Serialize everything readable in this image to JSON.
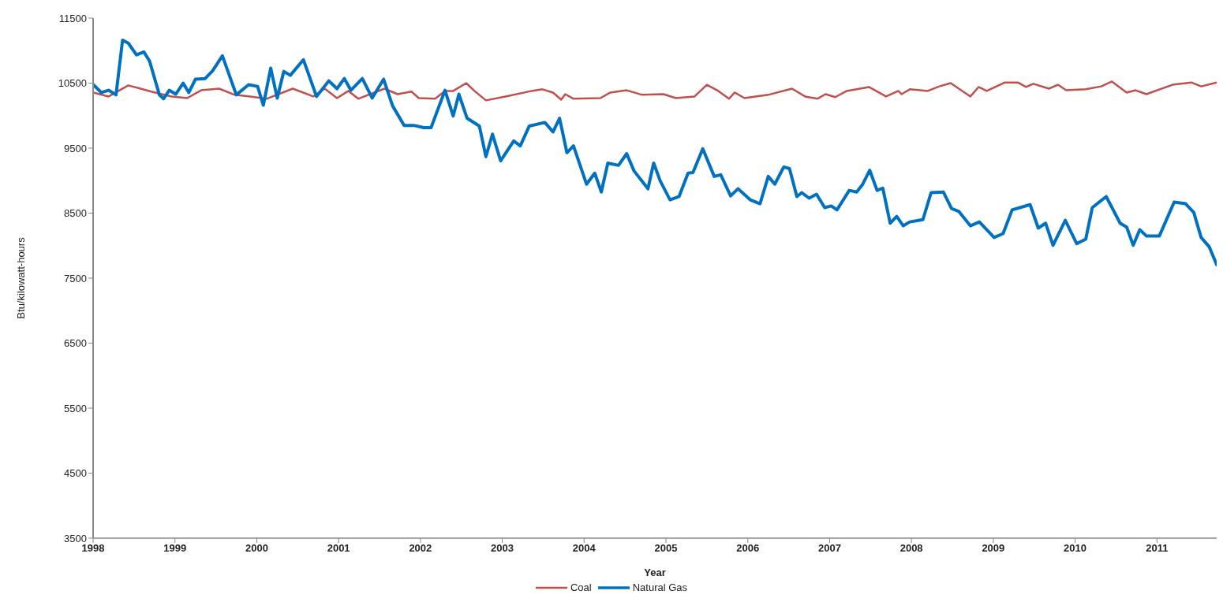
{
  "chart_data": {
    "type": "line",
    "xlabel": "Year",
    "ylabel": "Btu/kilowatt-hours",
    "xlim": [
      1998,
      2011.73
    ],
    "xticks": [
      1998,
      1999,
      2000,
      2001,
      2002,
      2003,
      2004,
      2005,
      2006,
      2007,
      2008,
      2009,
      2010,
      2011
    ],
    "ylim": [
      3500,
      11500
    ],
    "yticks": [
      3500,
      4500,
      5500,
      6500,
      7500,
      8500,
      9500,
      10500,
      11500
    ],
    "grid": false,
    "legend": "bottom",
    "marker": "none",
    "line_style": "solid",
    "series": [
      {
        "name": "Coal",
        "color": "#c0504d",
        "x": [
          1998.0,
          1998.19,
          1998.43,
          1998.58,
          1998.71,
          1998.84,
          1998.96,
          1999.15,
          1999.32,
          1999.54,
          1999.73,
          1999.92,
          2000.12,
          2000.44,
          2000.69,
          2000.83,
          2000.98,
          2001.12,
          2001.24,
          2001.56,
          2001.72,
          2001.89,
          2001.98,
          2002.18,
          2002.3,
          2002.4,
          2002.56,
          2002.66,
          2002.8,
          2003.04,
          2003.36,
          2003.49,
          2003.62,
          2003.72,
          2003.77,
          2003.87,
          2004.2,
          2004.32,
          2004.52,
          2004.71,
          2004.97,
          2005.12,
          2005.35,
          2005.5,
          2005.64,
          2005.77,
          2005.84,
          2005.96,
          2006.25,
          2006.54,
          2006.7,
          2006.85,
          2006.95,
          2007.07,
          2007.21,
          2007.48,
          2007.69,
          2007.84,
          2007.88,
          2007.98,
          2008.2,
          2008.34,
          2008.48,
          2008.72,
          2008.82,
          2008.92,
          2009.14,
          2009.3,
          2009.4,
          2009.49,
          2009.68,
          2009.79,
          2009.89,
          2010.13,
          2010.32,
          2010.45,
          2010.63,
          2010.74,
          2010.87,
          2011.19,
          2011.42,
          2011.54,
          2011.73
        ],
        "values": [
          10355,
          10295,
          10465,
          10415,
          10370,
          10330,
          10295,
          10270,
          10390,
          10415,
          10320,
          10295,
          10260,
          10415,
          10295,
          10415,
          10270,
          10380,
          10260,
          10415,
          10330,
          10370,
          10270,
          10260,
          10380,
          10380,
          10500,
          10380,
          10235,
          10295,
          10380,
          10405,
          10355,
          10245,
          10330,
          10260,
          10270,
          10355,
          10390,
          10320,
          10330,
          10270,
          10295,
          10475,
          10380,
          10260,
          10355,
          10270,
          10320,
          10415,
          10295,
          10260,
          10330,
          10285,
          10380,
          10440,
          10295,
          10380,
          10330,
          10405,
          10380,
          10450,
          10500,
          10295,
          10440,
          10380,
          10510,
          10510,
          10440,
          10490,
          10415,
          10475,
          10390,
          10405,
          10450,
          10525,
          10355,
          10390,
          10330,
          10475,
          10510,
          10450,
          10510
        ]
      },
      {
        "name": "Natural Gas",
        "color": "#0070c0",
        "x": [
          1998.0,
          1998.1,
          1998.19,
          1998.28,
          1998.36,
          1998.43,
          1998.53,
          1998.62,
          1998.69,
          1998.81,
          1998.86,
          1998.93,
          1999.01,
          1999.1,
          1999.17,
          1999.25,
          1999.37,
          1999.46,
          1999.58,
          1999.75,
          1999.9,
          2000.01,
          2000.08,
          2000.17,
          2000.25,
          2000.33,
          2000.41,
          2000.57,
          2000.73,
          2000.88,
          2000.98,
          2001.07,
          2001.15,
          2001.29,
          2001.41,
          2001.55,
          2001.66,
          2001.8,
          2001.92,
          2002.04,
          2002.13,
          2002.3,
          2002.4,
          2002.47,
          2002.57,
          2002.72,
          2002.8,
          2002.88,
          2002.98,
          2003.14,
          2003.22,
          2003.33,
          2003.52,
          2003.62,
          2003.7,
          2003.79,
          2003.87,
          2004.03,
          2004.13,
          2004.21,
          2004.29,
          2004.42,
          2004.52,
          2004.61,
          2004.78,
          2004.85,
          2004.93,
          2005.05,
          2005.16,
          2005.27,
          2005.33,
          2005.45,
          2005.59,
          2005.67,
          2005.79,
          2005.88,
          2006.03,
          2006.15,
          2006.25,
          2006.33,
          2006.44,
          2006.51,
          2006.6,
          2006.66,
          2006.75,
          2006.84,
          2006.94,
          2007.02,
          2007.09,
          2007.24,
          2007.33,
          2007.4,
          2007.49,
          2007.58,
          2007.65,
          2007.74,
          2007.82,
          2007.9,
          2007.98,
          2008.14,
          2008.24,
          2008.39,
          2008.49,
          2008.58,
          2008.72,
          2008.83,
          2009.01,
          2009.12,
          2009.23,
          2009.45,
          2009.55,
          2009.64,
          2009.73,
          2009.88,
          2010.02,
          2010.13,
          2010.21,
          2010.38,
          2010.55,
          2010.63,
          2010.71,
          2010.79,
          2010.87,
          2011.03,
          2011.21,
          2011.35,
          2011.45,
          2011.54,
          2011.64,
          2011.73
        ],
        "values": [
          10480,
          10355,
          10390,
          10320,
          11160,
          11115,
          10935,
          10980,
          10840,
          10320,
          10260,
          10390,
          10330,
          10500,
          10355,
          10560,
          10570,
          10690,
          10920,
          10320,
          10475,
          10450,
          10160,
          10730,
          10270,
          10680,
          10620,
          10860,
          10295,
          10535,
          10415,
          10570,
          10390,
          10570,
          10270,
          10560,
          10150,
          9850,
          9850,
          9815,
          9815,
          10390,
          9995,
          10330,
          9960,
          9840,
          9370,
          9715,
          9305,
          9610,
          9535,
          9840,
          9895,
          9750,
          9960,
          9430,
          9535,
          8945,
          9115,
          8825,
          9270,
          9235,
          9415,
          9150,
          8875,
          9270,
          8995,
          8705,
          8755,
          9115,
          9125,
          9490,
          9065,
          9090,
          8765,
          8875,
          8705,
          8645,
          9065,
          8945,
          9210,
          9185,
          8755,
          8815,
          8730,
          8790,
          8585,
          8610,
          8550,
          8850,
          8825,
          8935,
          9160,
          8850,
          8885,
          8345,
          8450,
          8305,
          8365,
          8400,
          8815,
          8825,
          8570,
          8525,
          8305,
          8365,
          8125,
          8185,
          8550,
          8630,
          8270,
          8345,
          8005,
          8390,
          8030,
          8100,
          8585,
          8755,
          8345,
          8285,
          8005,
          8245,
          8150,
          8150,
          8670,
          8645,
          8510,
          8125,
          7980,
          7705
        ]
      }
    ]
  }
}
